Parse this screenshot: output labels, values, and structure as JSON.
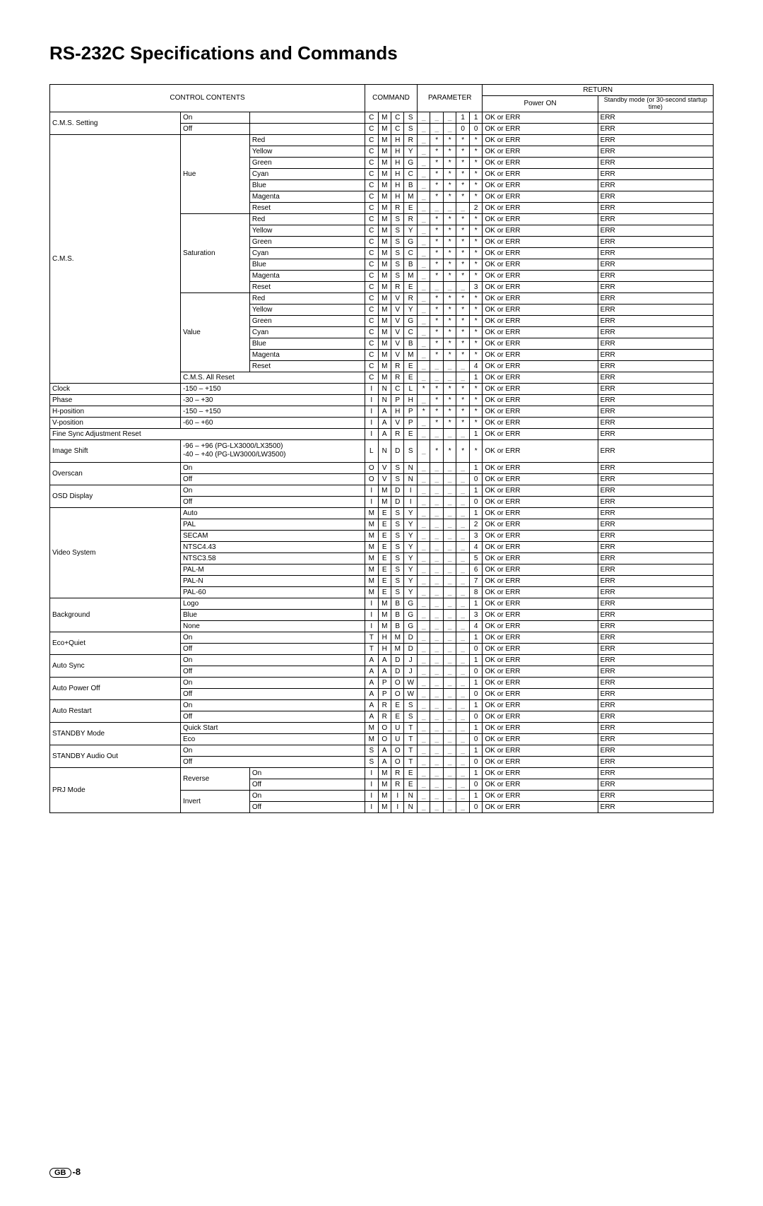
{
  "title": "RS-232C Specifications and Commands",
  "header": {
    "control": "CONTROL CONTENTS",
    "command": "COMMAND",
    "parameter": "PARAMETER",
    "return": "RETURN",
    "poweron": "Power ON",
    "standby": "Standby mode\n(or 30-second startup time)"
  },
  "footer": {
    "gb": "GB",
    "page": "-8"
  },
  "ok": "OK or ERR",
  "err": "ERR",
  "rows": [
    {
      "c0": "C.M.S. Setting",
      "c1": "On",
      "c2": "",
      "cmd": [
        "C",
        "M",
        "C",
        "S"
      ],
      "par": [
        "_",
        "_",
        "_",
        "1",
        "1"
      ]
    },
    {
      "c0": "",
      "c1": "Off",
      "c2": "",
      "cmd": [
        "C",
        "M",
        "C",
        "S"
      ],
      "par": [
        "_",
        "_",
        "_",
        "0",
        "0"
      ]
    },
    {
      "c0": "C.M.S.",
      "c1": "Hue",
      "c2": "Red",
      "cmd": [
        "C",
        "M",
        "H",
        "R"
      ],
      "par": [
        "_",
        "*",
        "*",
        "*",
        "*"
      ]
    },
    {
      "c0": "",
      "c1": "",
      "c2": "Yellow",
      "cmd": [
        "C",
        "M",
        "H",
        "Y"
      ],
      "par": [
        "_",
        "*",
        "*",
        "*",
        "*"
      ]
    },
    {
      "c0": "",
      "c1": "",
      "c2": "Green",
      "cmd": [
        "C",
        "M",
        "H",
        "G"
      ],
      "par": [
        "_",
        "*",
        "*",
        "*",
        "*"
      ]
    },
    {
      "c0": "",
      "c1": "",
      "c2": "Cyan",
      "cmd": [
        "C",
        "M",
        "H",
        "C"
      ],
      "par": [
        "_",
        "*",
        "*",
        "*",
        "*"
      ]
    },
    {
      "c0": "",
      "c1": "",
      "c2": "Blue",
      "cmd": [
        "C",
        "M",
        "H",
        "B"
      ],
      "par": [
        "_",
        "*",
        "*",
        "*",
        "*"
      ]
    },
    {
      "c0": "",
      "c1": "",
      "c2": "Magenta",
      "cmd": [
        "C",
        "M",
        "H",
        "M"
      ],
      "par": [
        "_",
        "*",
        "*",
        "*",
        "*"
      ]
    },
    {
      "c0": "",
      "c1": "",
      "c2": "Reset",
      "cmd": [
        "C",
        "M",
        "R",
        "E"
      ],
      "par": [
        "_",
        "_",
        "_",
        "_",
        "2"
      ]
    },
    {
      "c0": "",
      "c1": "Saturation",
      "c2": "Red",
      "cmd": [
        "C",
        "M",
        "S",
        "R"
      ],
      "par": [
        "_",
        "*",
        "*",
        "*",
        "*"
      ]
    },
    {
      "c0": "",
      "c1": "",
      "c2": "Yellow",
      "cmd": [
        "C",
        "M",
        "S",
        "Y"
      ],
      "par": [
        "_",
        "*",
        "*",
        "*",
        "*"
      ]
    },
    {
      "c0": "",
      "c1": "",
      "c2": "Green",
      "cmd": [
        "C",
        "M",
        "S",
        "G"
      ],
      "par": [
        "_",
        "*",
        "*",
        "*",
        "*"
      ]
    },
    {
      "c0": "",
      "c1": "",
      "c2": "Cyan",
      "cmd": [
        "C",
        "M",
        "S",
        "C"
      ],
      "par": [
        "_",
        "*",
        "*",
        "*",
        "*"
      ]
    },
    {
      "c0": "",
      "c1": "",
      "c2": "Blue",
      "cmd": [
        "C",
        "M",
        "S",
        "B"
      ],
      "par": [
        "_",
        "*",
        "*",
        "*",
        "*"
      ]
    },
    {
      "c0": "",
      "c1": "",
      "c2": "Magenta",
      "cmd": [
        "C",
        "M",
        "S",
        "M"
      ],
      "par": [
        "_",
        "*",
        "*",
        "*",
        "*"
      ]
    },
    {
      "c0": "",
      "c1": "",
      "c2": "Reset",
      "cmd": [
        "C",
        "M",
        "R",
        "E"
      ],
      "par": [
        "_",
        "_",
        "_",
        "_",
        "3"
      ]
    },
    {
      "c0": "",
      "c1": "Value",
      "c2": "Red",
      "cmd": [
        "C",
        "M",
        "V",
        "R"
      ],
      "par": [
        "_",
        "*",
        "*",
        "*",
        "*"
      ]
    },
    {
      "c0": "",
      "c1": "",
      "c2": "Yellow",
      "cmd": [
        "C",
        "M",
        "V",
        "Y"
      ],
      "par": [
        "_",
        "*",
        "*",
        "*",
        "*"
      ]
    },
    {
      "c0": "",
      "c1": "",
      "c2": "Green",
      "cmd": [
        "C",
        "M",
        "V",
        "G"
      ],
      "par": [
        "_",
        "*",
        "*",
        "*",
        "*"
      ]
    },
    {
      "c0": "",
      "c1": "",
      "c2": "Cyan",
      "cmd": [
        "C",
        "M",
        "V",
        "C"
      ],
      "par": [
        "_",
        "*",
        "*",
        "*",
        "*"
      ]
    },
    {
      "c0": "",
      "c1": "",
      "c2": "Blue",
      "cmd": [
        "C",
        "M",
        "V",
        "B"
      ],
      "par": [
        "_",
        "*",
        "*",
        "*",
        "*"
      ]
    },
    {
      "c0": "",
      "c1": "",
      "c2": "Magenta",
      "cmd": [
        "C",
        "M",
        "V",
        "M"
      ],
      "par": [
        "_",
        "*",
        "*",
        "*",
        "*"
      ]
    },
    {
      "c0": "",
      "c1": "",
      "c2": "Reset",
      "cmd": [
        "C",
        "M",
        "R",
        "E"
      ],
      "par": [
        "_",
        "_",
        "_",
        "_",
        "4"
      ]
    },
    {
      "c0": "",
      "c1": "C.M.S. All Reset",
      "c2": "",
      "span12": true,
      "cmd": [
        "C",
        "M",
        "R",
        "E"
      ],
      "par": [
        "_",
        "_",
        "_",
        "_",
        "1"
      ]
    },
    {
      "c0": "Clock",
      "c1": "-150 – +150",
      "c2": "",
      "span12": true,
      "cmd": [
        "I",
        "N",
        "C",
        "L"
      ],
      "par": [
        "*",
        "*",
        "*",
        "*",
        "*"
      ]
    },
    {
      "c0": "Phase",
      "c1": "-30 – +30",
      "c2": "",
      "span12": true,
      "cmd": [
        "I",
        "N",
        "P",
        "H"
      ],
      "par": [
        "_",
        "*",
        "*",
        "*",
        "*"
      ]
    },
    {
      "c0": "H-position",
      "c1": "-150 – +150",
      "c2": "",
      "span12": true,
      "cmd": [
        "I",
        "A",
        "H",
        "P"
      ],
      "par": [
        "*",
        "*",
        "*",
        "*",
        "*"
      ]
    },
    {
      "c0": "V-position",
      "c1": "-60 – +60",
      "c2": "",
      "span12": true,
      "cmd": [
        "I",
        "A",
        "V",
        "P"
      ],
      "par": [
        "_",
        "*",
        "*",
        "*",
        "*"
      ]
    },
    {
      "c0": "Fine Sync Adjustment Reset",
      "c1": "",
      "c2": "",
      "span012": true,
      "cmd": [
        "I",
        "A",
        "R",
        "E"
      ],
      "par": [
        "_",
        "_",
        "_",
        "_",
        "1"
      ]
    },
    {
      "c0": "Image Shift",
      "c1": "-96 – +96 (PG-LX3000/LX3500)\n-40 – +40 (PG-LW3000/LW3500)",
      "c2": "",
      "span12": true,
      "tall": true,
      "cmd": [
        "L",
        "N",
        "D",
        "S"
      ],
      "par": [
        "_",
        "*",
        "*",
        "*",
        "*"
      ]
    },
    {
      "c0": "Overscan",
      "c1": "On",
      "c2": "",
      "span12": true,
      "cmd": [
        "O",
        "V",
        "S",
        "N"
      ],
      "par": [
        "_",
        "_",
        "_",
        "_",
        "1"
      ]
    },
    {
      "c0": "",
      "c1": "Off",
      "c2": "",
      "span12": true,
      "cmd": [
        "O",
        "V",
        "S",
        "N"
      ],
      "par": [
        "_",
        "_",
        "_",
        "_",
        "0"
      ]
    },
    {
      "c0": "OSD Display",
      "c1": "On",
      "c2": "",
      "span12": true,
      "cmd": [
        "I",
        "M",
        "D",
        "I"
      ],
      "par": [
        "_",
        "_",
        "_",
        "_",
        "1"
      ]
    },
    {
      "c0": "",
      "c1": "Off",
      "c2": "",
      "span12": true,
      "cmd": [
        "I",
        "M",
        "D",
        "I"
      ],
      "par": [
        "_",
        "_",
        "_",
        "_",
        "0"
      ]
    },
    {
      "c0": "Video System",
      "c1": "Auto",
      "c2": "",
      "span12": true,
      "cmd": [
        "M",
        "E",
        "S",
        "Y"
      ],
      "par": [
        "_",
        "_",
        "_",
        "_",
        "1"
      ]
    },
    {
      "c0": "",
      "c1": "PAL",
      "c2": "",
      "span12": true,
      "cmd": [
        "M",
        "E",
        "S",
        "Y"
      ],
      "par": [
        "_",
        "_",
        "_",
        "_",
        "2"
      ]
    },
    {
      "c0": "",
      "c1": "SECAM",
      "c2": "",
      "span12": true,
      "cmd": [
        "M",
        "E",
        "S",
        "Y"
      ],
      "par": [
        "_",
        "_",
        "_",
        "_",
        "3"
      ]
    },
    {
      "c0": "",
      "c1": "NTSC4.43",
      "c2": "",
      "span12": true,
      "cmd": [
        "M",
        "E",
        "S",
        "Y"
      ],
      "par": [
        "_",
        "_",
        "_",
        "_",
        "4"
      ]
    },
    {
      "c0": "",
      "c1": "NTSC3.58",
      "c2": "",
      "span12": true,
      "cmd": [
        "M",
        "E",
        "S",
        "Y"
      ],
      "par": [
        "_",
        "_",
        "_",
        "_",
        "5"
      ]
    },
    {
      "c0": "",
      "c1": "PAL-M",
      "c2": "",
      "span12": true,
      "cmd": [
        "M",
        "E",
        "S",
        "Y"
      ],
      "par": [
        "_",
        "_",
        "_",
        "_",
        "6"
      ]
    },
    {
      "c0": "",
      "c1": "PAL-N",
      "c2": "",
      "span12": true,
      "cmd": [
        "M",
        "E",
        "S",
        "Y"
      ],
      "par": [
        "_",
        "_",
        "_",
        "_",
        "7"
      ]
    },
    {
      "c0": "",
      "c1": "PAL-60",
      "c2": "",
      "span12": true,
      "cmd": [
        "M",
        "E",
        "S",
        "Y"
      ],
      "par": [
        "_",
        "_",
        "_",
        "_",
        "8"
      ]
    },
    {
      "c0": "Background",
      "c1": "Logo",
      "c2": "",
      "span12": true,
      "cmd": [
        "I",
        "M",
        "B",
        "G"
      ],
      "par": [
        "_",
        "_",
        "_",
        "_",
        "1"
      ]
    },
    {
      "c0": "",
      "c1": "Blue",
      "c2": "",
      "span12": true,
      "cmd": [
        "I",
        "M",
        "B",
        "G"
      ],
      "par": [
        "_",
        "_",
        "_",
        "_",
        "3"
      ]
    },
    {
      "c0": "",
      "c1": "None",
      "c2": "",
      "span12": true,
      "cmd": [
        "I",
        "M",
        "B",
        "G"
      ],
      "par": [
        "_",
        "_",
        "_",
        "_",
        "4"
      ]
    },
    {
      "c0": "Eco+Quiet",
      "c1": "On",
      "c2": "",
      "span12": true,
      "cmd": [
        "T",
        "H",
        "M",
        "D"
      ],
      "par": [
        "_",
        "_",
        "_",
        "_",
        "1"
      ]
    },
    {
      "c0": "",
      "c1": "Off",
      "c2": "",
      "span12": true,
      "cmd": [
        "T",
        "H",
        "M",
        "D"
      ],
      "par": [
        "_",
        "_",
        "_",
        "_",
        "0"
      ]
    },
    {
      "c0": "Auto Sync",
      "c1": "On",
      "c2": "",
      "span12": true,
      "cmd": [
        "A",
        "A",
        "D",
        "J"
      ],
      "par": [
        "_",
        "_",
        "_",
        "_",
        "1"
      ]
    },
    {
      "c0": "",
      "c1": "Off",
      "c2": "",
      "span12": true,
      "cmd": [
        "A",
        "A",
        "D",
        "J"
      ],
      "par": [
        "_",
        "_",
        "_",
        "_",
        "0"
      ]
    },
    {
      "c0": "Auto Power Off",
      "c1": "On",
      "c2": "",
      "span12": true,
      "cmd": [
        "A",
        "P",
        "O",
        "W"
      ],
      "par": [
        "_",
        "_",
        "_",
        "_",
        "1"
      ]
    },
    {
      "c0": "",
      "c1": "Off",
      "c2": "",
      "span12": true,
      "cmd": [
        "A",
        "P",
        "O",
        "W"
      ],
      "par": [
        "_",
        "_",
        "_",
        "_",
        "0"
      ]
    },
    {
      "c0": "Auto Restart",
      "c1": "On",
      "c2": "",
      "span12": true,
      "cmd": [
        "A",
        "R",
        "E",
        "S"
      ],
      "par": [
        "_",
        "_",
        "_",
        "_",
        "1"
      ]
    },
    {
      "c0": "",
      "c1": "Off",
      "c2": "",
      "span12": true,
      "cmd": [
        "A",
        "R",
        "E",
        "S"
      ],
      "par": [
        "_",
        "_",
        "_",
        "_",
        "0"
      ]
    },
    {
      "c0": "STANDBY Mode",
      "c1": "Quick Start",
      "c2": "",
      "span12": true,
      "cmd": [
        "M",
        "O",
        "U",
        "T"
      ],
      "par": [
        "_",
        "_",
        "_",
        "_",
        "1"
      ]
    },
    {
      "c0": "",
      "c1": "Eco",
      "c2": "",
      "span12": true,
      "cmd": [
        "M",
        "O",
        "U",
        "T"
      ],
      "par": [
        "_",
        "_",
        "_",
        "_",
        "0"
      ]
    },
    {
      "c0": "STANDBY Audio Out",
      "c1": "On",
      "c2": "",
      "span12": true,
      "cmd": [
        "S",
        "A",
        "O",
        "T"
      ],
      "par": [
        "_",
        "_",
        "_",
        "_",
        "1"
      ]
    },
    {
      "c0": "",
      "c1": "Off",
      "c2": "",
      "span12": true,
      "cmd": [
        "S",
        "A",
        "O",
        "T"
      ],
      "par": [
        "_",
        "_",
        "_",
        "_",
        "0"
      ]
    },
    {
      "c0": "PRJ Mode",
      "c1": "Reverse",
      "c2": "On",
      "cmd": [
        "I",
        "M",
        "R",
        "E"
      ],
      "par": [
        "_",
        "_",
        "_",
        "_",
        "1"
      ]
    },
    {
      "c0": "",
      "c1": "",
      "c2": "Off",
      "cmd": [
        "I",
        "M",
        "R",
        "E"
      ],
      "par": [
        "_",
        "_",
        "_",
        "_",
        "0"
      ]
    },
    {
      "c0": "",
      "c1": "Invert",
      "c2": "On",
      "cmd": [
        "I",
        "M",
        "I",
        "N"
      ],
      "par": [
        "_",
        "_",
        "_",
        "_",
        "1"
      ]
    },
    {
      "c0": "",
      "c1": "",
      "c2": "Off",
      "cmd": [
        "I",
        "M",
        "I",
        "N"
      ],
      "par": [
        "_",
        "_",
        "_",
        "_",
        "0"
      ]
    }
  ]
}
